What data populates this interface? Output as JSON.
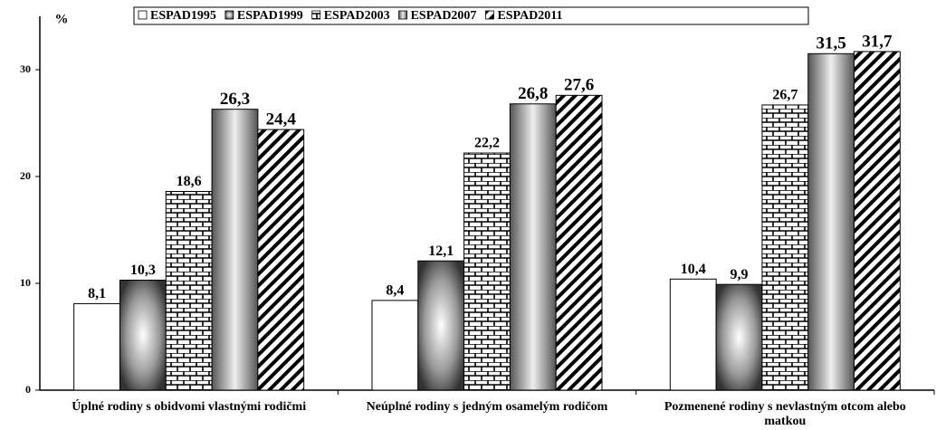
{
  "chart_data": {
    "type": "bar",
    "y_label": "%",
    "categories": [
      "Úplné rodiny s obidvomi vlastnými rodičmi",
      "Neúplné rodiny s jedným osamelým rodičom",
      "Pozmenené rodiny s nevlastným otcom alebo matkou"
    ],
    "series": [
      {
        "name": "ESPAD1995",
        "color": "#ffffff",
        "values": [
          8.1,
          8.4,
          10.4
        ],
        "value_labels": [
          "8,1",
          "8,4",
          "10,4"
        ]
      },
      {
        "name": "ESPAD1999",
        "color": "#777777",
        "values": [
          10.3,
          12.1,
          9.9
        ],
        "value_labels": [
          "10,3",
          "12,1",
          "9,9"
        ]
      },
      {
        "name": "ESPAD2003",
        "color": "#000000",
        "values": [
          18.6,
          22.2,
          26.7
        ],
        "value_labels": [
          "18,6",
          "22,2",
          "26,7"
        ]
      },
      {
        "name": "ESPAD2007",
        "color": "#888888",
        "values": [
          26.3,
          26.8,
          31.5
        ],
        "value_labels": [
          "26,3",
          "26,8",
          "31,5"
        ]
      },
      {
        "name": "ESPAD2011",
        "color": "#000000",
        "values": [
          24.4,
          27.6,
          31.7
        ],
        "value_labels": [
          "24,4",
          "27,6",
          "31,7"
        ]
      }
    ],
    "ylim": [
      0,
      35
    ],
    "yticks": [
      0,
      10,
      20,
      30
    ],
    "grid": false,
    "legend": "top"
  }
}
